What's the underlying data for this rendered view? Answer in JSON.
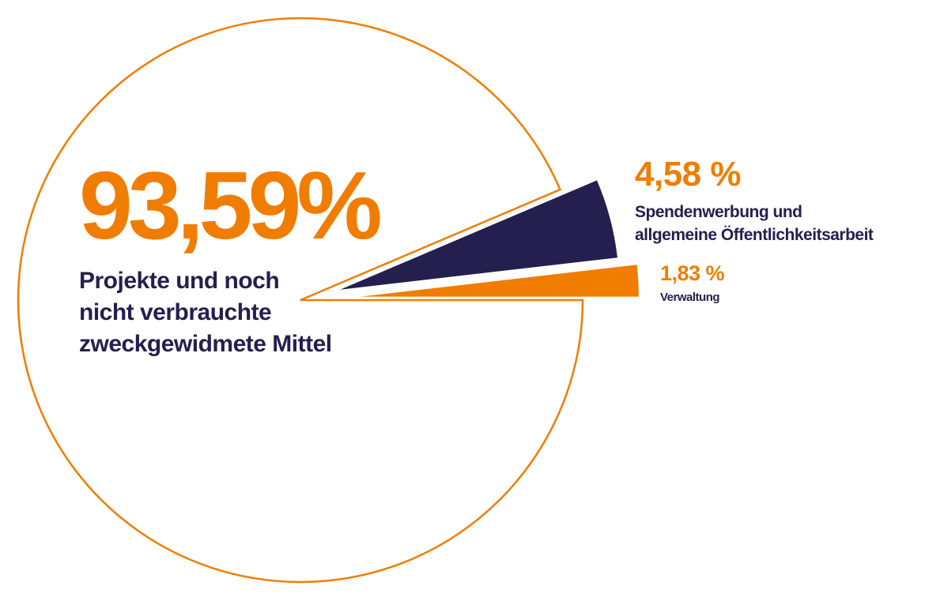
{
  "chart_data": {
    "type": "pie",
    "categories": [
      "Projekte und noch nicht verbrauchte zweckgewidmete Mittel",
      "Spendenwerbung und allgemeine Öffentlichkeitsarbeit",
      "Verwaltung"
    ],
    "values": [
      93.59,
      4.58,
      1.83
    ],
    "value_labels": [
      "93,59%",
      "4,58 %",
      "1,83 %"
    ],
    "colors": [
      "#ffffff",
      "#241f4e",
      "#f07d00"
    ],
    "outline_color": "#f07d00"
  }
}
